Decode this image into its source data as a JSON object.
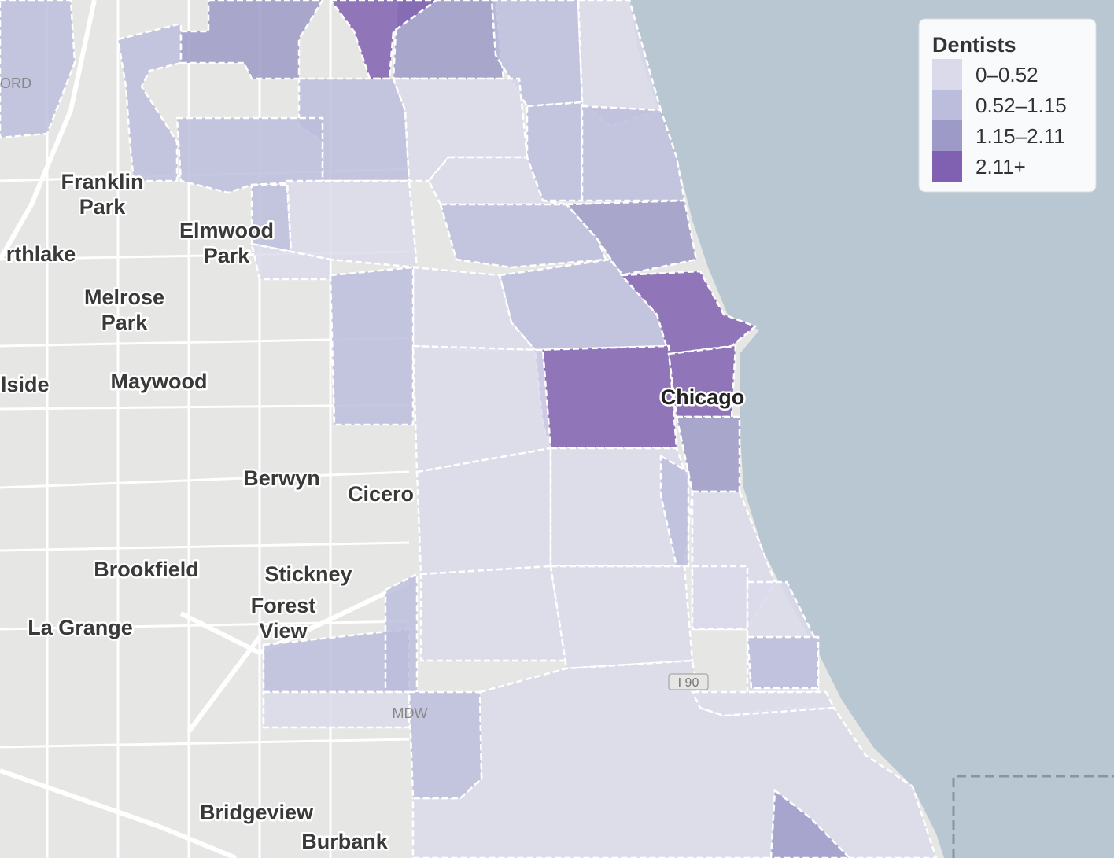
{
  "legend": {
    "title": "Dentists",
    "items": [
      {
        "label": "0–0.52",
        "color": "#dadaeb"
      },
      {
        "label": "0.52–1.15",
        "color": "#bcbddc"
      },
      {
        "label": "1.15–2.11",
        "color": "#9e9ac8"
      },
      {
        "label": "2.11+",
        "color": "#8060b0"
      }
    ]
  },
  "places": [
    {
      "lines": [
        "Franklin",
        "Park"
      ]
    },
    {
      "lines": [
        "Elmwood",
        "Park"
      ]
    },
    {
      "lines": [
        "rthlake"
      ]
    },
    {
      "lines": [
        "Melrose",
        "Park"
      ]
    },
    {
      "lines": [
        "llside"
      ]
    },
    {
      "lines": [
        "Maywood"
      ]
    },
    {
      "lines": [
        "Berwyn"
      ]
    },
    {
      "lines": [
        "Cicero"
      ]
    },
    {
      "lines": [
        "Brookfield"
      ]
    },
    {
      "lines": [
        "Stickney"
      ]
    },
    {
      "lines": [
        "Forest",
        "View"
      ]
    },
    {
      "lines": [
        "La Grange"
      ]
    },
    {
      "lines": [
        "Bridgeview"
      ]
    },
    {
      "lines": [
        "Burbank"
      ]
    },
    {
      "lines": [
        "Chicago"
      ]
    }
  ],
  "airports": [
    "ORD",
    "MDW"
  ],
  "highway": "I 90"
}
